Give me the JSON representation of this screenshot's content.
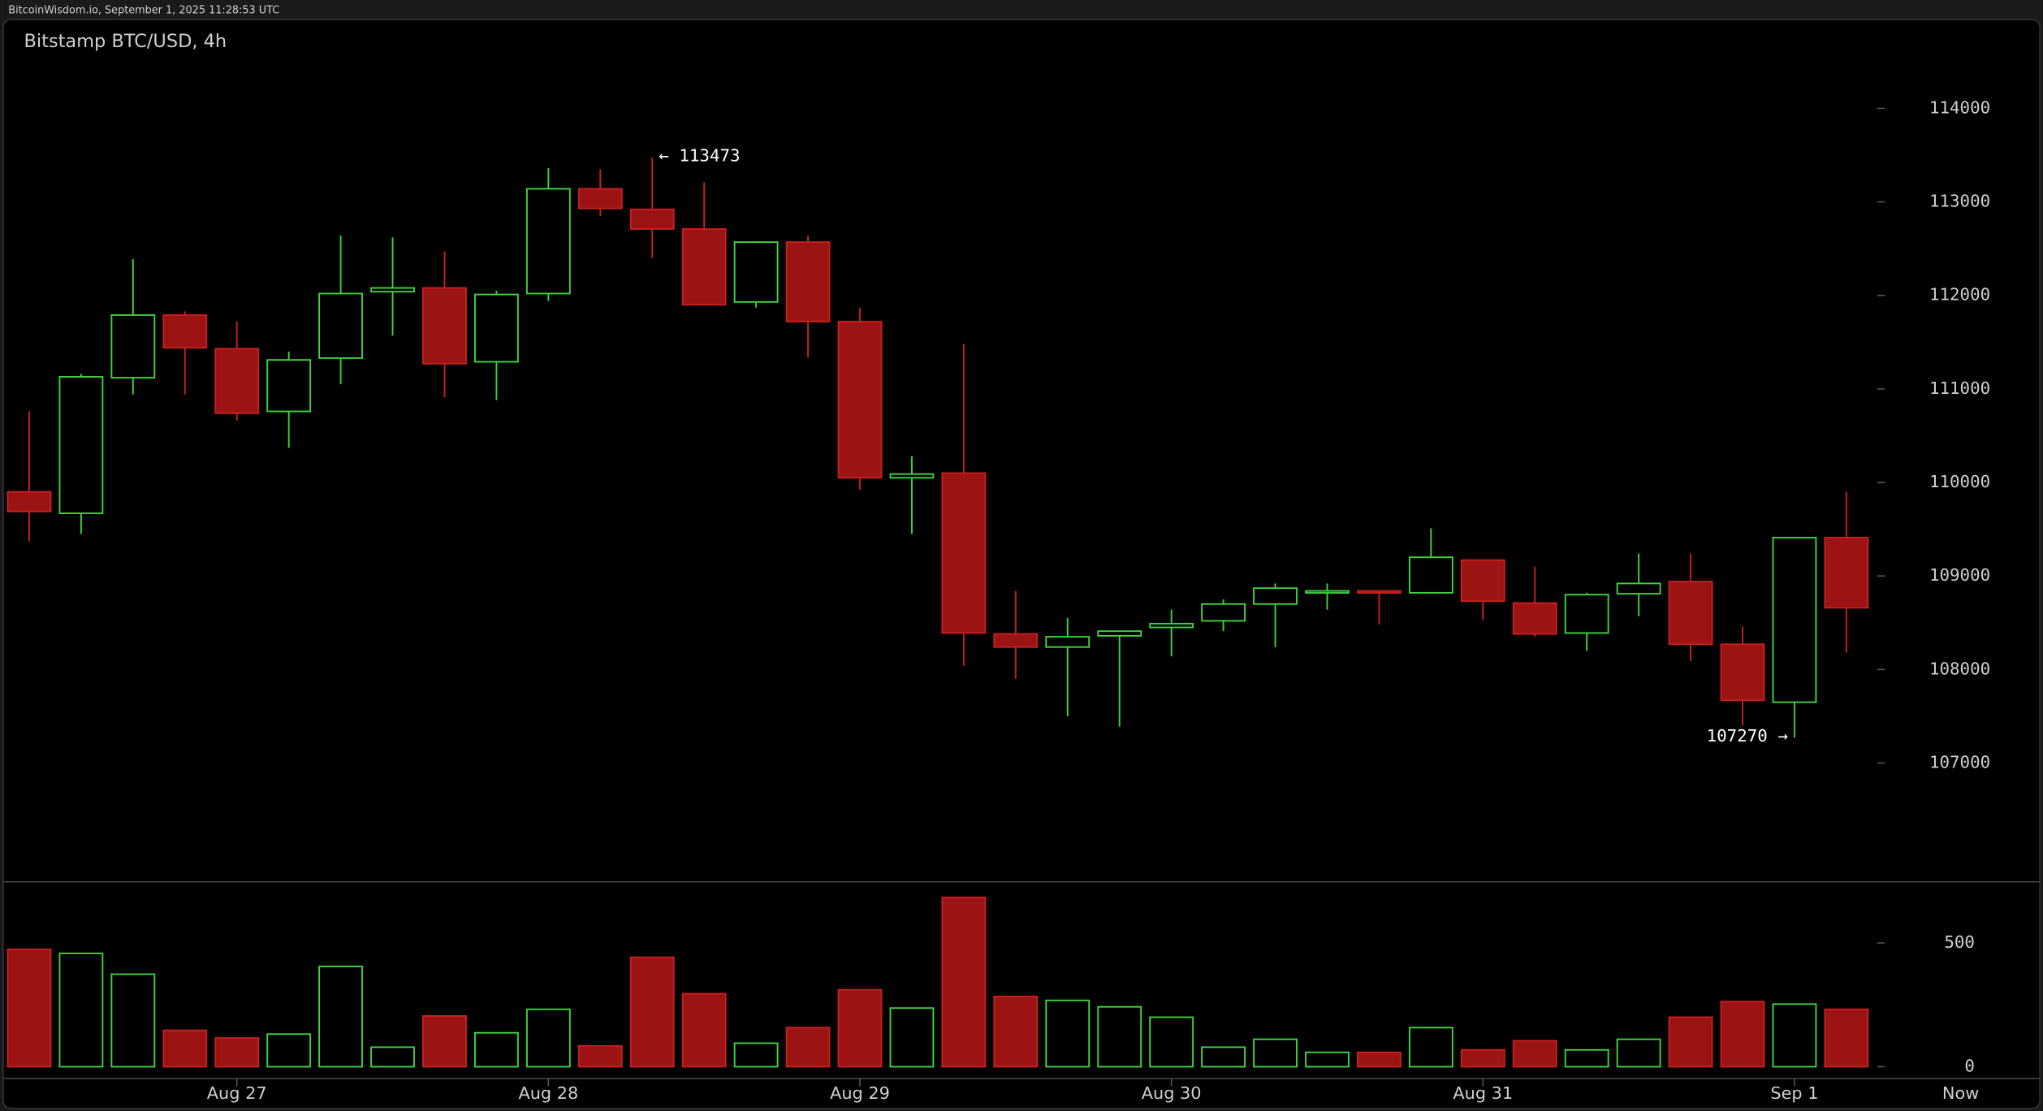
{
  "chart_data": {
    "type": "candlestick",
    "source": "BitcoinWisdom.io, September 1, 2025 11:28:53 UTC",
    "title": "Bitstamp BTC/USD, 4h",
    "categories": [
      null,
      null,
      null,
      null,
      "Aug 27",
      null,
      null,
      null,
      null,
      null,
      "Aug 28",
      null,
      null,
      null,
      null,
      null,
      "Aug 29",
      null,
      null,
      null,
      null,
      null,
      "Aug 30",
      null,
      null,
      null,
      null,
      null,
      "Aug 31",
      null,
      null,
      null,
      null,
      null,
      "Sep 1",
      null
    ],
    "end_label": "Now",
    "open": [
      109900,
      109670,
      111120,
      111790,
      111430,
      110760,
      111330,
      112040,
      112080,
      111290,
      112020,
      113140,
      112920,
      112710,
      111930,
      112570,
      111720,
      110050,
      110100,
      108380,
      108240,
      108360,
      108450,
      108520,
      108700,
      108820,
      108840,
      108820,
      109170,
      108710,
      108390,
      108810,
      108940,
      108270,
      107650,
      109410
    ],
    "high": [
      110760,
      111160,
      112390,
      111830,
      111720,
      111400,
      112640,
      112620,
      112470,
      112050,
      113360,
      113350,
      113473,
      113210,
      112580,
      112640,
      111870,
      110280,
      111480,
      108840,
      108550,
      108410,
      108640,
      108750,
      108920,
      108920,
      108840,
      109510,
      109170,
      109100,
      108820,
      109240,
      109240,
      108460,
      109410,
      109900
    ],
    "low": [
      109370,
      109450,
      110940,
      110940,
      110660,
      110370,
      111050,
      111570,
      110910,
      110880,
      111940,
      112850,
      112400,
      111900,
      111870,
      111340,
      109920,
      109450,
      108040,
      107900,
      107500,
      107390,
      108140,
      108410,
      108240,
      108640,
      108480,
      108820,
      108530,
      108350,
      108200,
      108570,
      108090,
      107400,
      107270,
      108180
    ],
    "close": [
      109690,
      111130,
      111790,
      111440,
      110740,
      111310,
      112020,
      112080,
      111270,
      112010,
      113140,
      112930,
      112710,
      111900,
      112570,
      111720,
      110050,
      110090,
      108390,
      108240,
      108350,
      108410,
      108490,
      108700,
      108870,
      108840,
      108820,
      109200,
      108730,
      108380,
      108800,
      108920,
      108270,
      107670,
      109410,
      108660
    ],
    "volume": [
      474,
      458,
      374,
      147,
      116,
      132,
      405,
      79,
      205,
      137,
      232,
      84,
      442,
      295,
      95,
      158,
      311,
      237,
      684,
      284,
      268,
      242,
      200,
      79,
      111,
      58,
      58,
      158,
      68,
      105,
      68,
      111,
      200,
      263,
      253,
      232
    ],
    "up_color": "#3fd13f",
    "down_color": "#9b1313",
    "down_wick_color": "#c62020",
    "ylim": [
      105730,
      114950
    ],
    "yticks": [
      107000,
      108000,
      109000,
      110000,
      111000,
      112000,
      113000,
      114000
    ],
    "volume_ylim": [
      0,
      742
    ],
    "volume_yticks": [
      0,
      500
    ],
    "annotations": [
      {
        "value": 113473,
        "label": "← 113473"
      },
      {
        "value": 107270,
        "label": "107270 →"
      }
    ]
  }
}
